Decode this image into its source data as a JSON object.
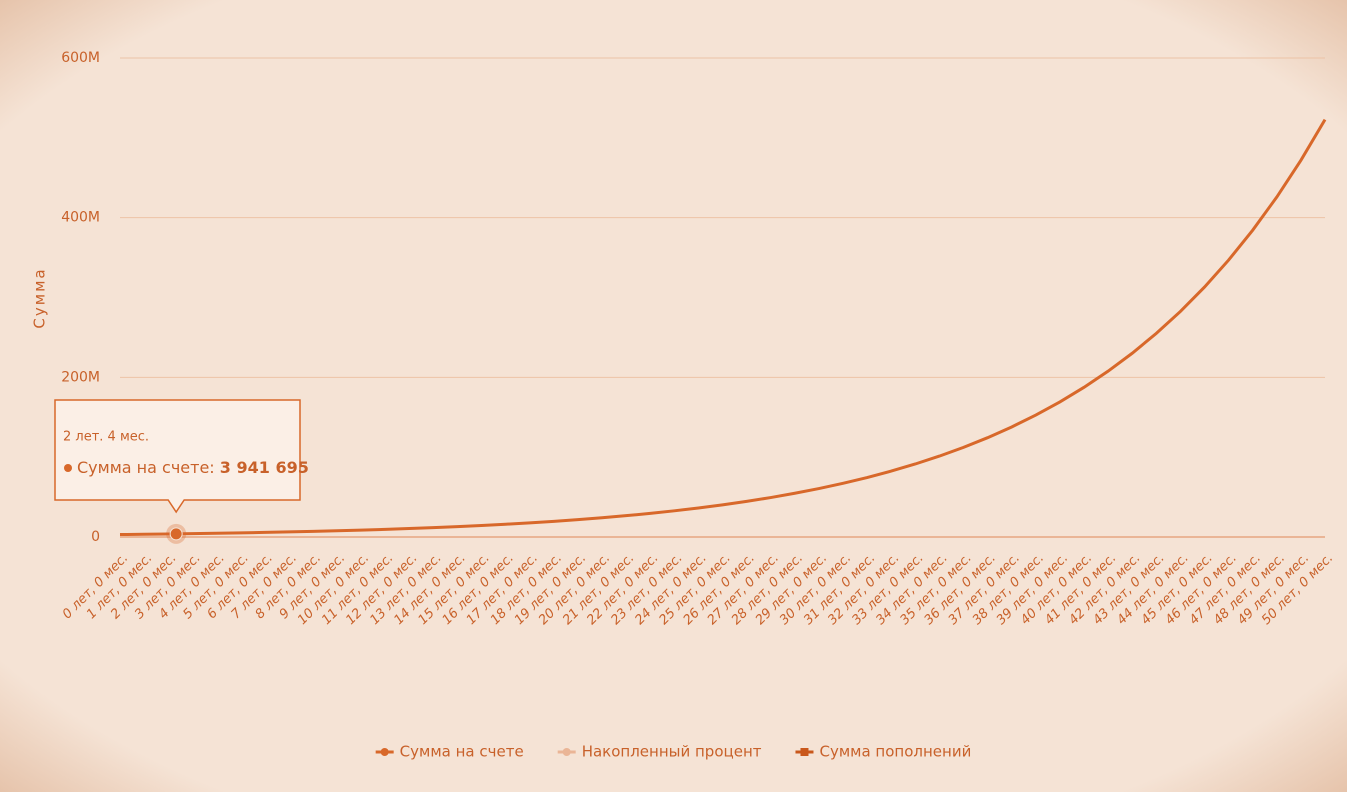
{
  "chart_data": {
    "type": "line",
    "ylabel": "Сумма",
    "categories": [
      "0 лет, 0 мес.",
      "1 лет, 0 мес.",
      "2 лет, 0 мес.",
      "3 лет, 0 мес.",
      "4 лет, 0 мес.",
      "5 лет, 0 мес.",
      "6 лет, 0 мес.",
      "7 лет, 0 мес.",
      "8 лет, 0 мес.",
      "9 лет, 0 мес.",
      "10 лет, 0 мес.",
      "11 лет, 0 мес.",
      "12 лет, 0 мес.",
      "13 лет, 0 мес.",
      "14 лет, 0 мес.",
      "15 лет, 0 мес.",
      "16 лет, 0 мес.",
      "17 лет, 0 мес.",
      "18 лет, 0 мес.",
      "19 лет, 0 мес.",
      "20 лет, 0 мес.",
      "21 лет, 0 мес.",
      "22 лет, 0 мес.",
      "23 лет, 0 мес.",
      "24 лет, 0 мес.",
      "25 лет, 0 мес.",
      "26 лет, 0 мес.",
      "27 лет, 0 мес.",
      "28 лет, 0 мес.",
      "29 лет, 0 мес.",
      "30 лет, 0 мес.",
      "31 лет, 0 мес.",
      "32 лет, 0 мес.",
      "33 лет, 0 мес.",
      "34 лет, 0 мес.",
      "35 лет, 0 мес.",
      "36 лет, 0 мес.",
      "37 лет, 0 мес.",
      "38 лет, 0 мес.",
      "39 лет, 0 мес.",
      "40 лет, 0 мес.",
      "41 лет, 0 мес.",
      "42 лет, 0 мес.",
      "43 лет, 0 мес.",
      "44 лет, 0 мес.",
      "45 лет, 0 мес.",
      "46 лет, 0 мес.",
      "47 лет, 0 мес.",
      "48 лет, 0 мес.",
      "49 лет, 0 мес.",
      "50 лет, 0 мес."
    ],
    "series": [
      {
        "name": "Сумма на счете",
        "color": "#d8682a",
        "values": [
          3100000,
          3435000,
          3806000,
          4217000,
          4672000,
          5177000,
          5736000,
          6355000,
          7041000,
          7802000,
          8644000,
          9578000,
          10613000,
          11759000,
          13029000,
          14436000,
          15995000,
          17722000,
          19636000,
          21757000,
          24107000,
          26710000,
          29595000,
          32791000,
          36333000,
          40257000,
          44604000,
          49421000,
          54759000,
          60673000,
          67226000,
          74486000,
          82531000,
          91444000,
          101320000,
          112262000,
          124387000,
          137821000,
          152705000,
          169197000,
          187471000,
          207718000,
          230151000,
          255008000,
          282549000,
          313063000,
          346875000,
          384338000,
          425847000,
          471839000,
          522796000
        ]
      },
      {
        "name": "Накопленный процент",
        "color": "#eab596",
        "values": [
          0,
          0,
          0,
          0,
          0,
          0,
          0,
          0,
          0,
          0,
          0,
          0,
          0,
          0,
          0,
          0,
          0,
          0,
          0,
          0,
          0,
          0,
          0,
          0,
          0,
          0,
          0,
          0,
          0,
          0,
          0,
          0,
          0,
          0,
          0,
          0,
          0,
          0,
          0,
          0,
          0,
          0,
          0,
          0,
          0,
          0,
          0,
          0,
          0,
          0,
          0
        ]
      },
      {
        "name": "Сумма пополнений",
        "color": "#c9581c",
        "values": [
          0,
          0,
          0,
          0,
          0,
          0,
          0,
          0,
          0,
          0,
          0,
          0,
          0,
          0,
          0,
          0,
          0,
          0,
          0,
          0,
          0,
          0,
          0,
          0,
          0,
          0,
          0,
          0,
          0,
          0,
          0,
          0,
          0,
          0,
          0,
          0,
          0,
          0,
          0,
          0,
          0,
          0,
          0,
          0,
          0,
          0,
          0,
          0,
          0,
          0,
          0
        ]
      }
    ],
    "ylim": [
      0,
      600000000
    ],
    "yticks": [
      0,
      {
        "value": 200000000,
        "label": "200M"
      },
      {
        "value": 400000000,
        "label": "400M"
      },
      {
        "value": 600000000,
        "label": "600M"
      }
    ],
    "grid": true,
    "tooltip": {
      "title": "2 лет. 4 мес.",
      "label": "Сумма на счете:",
      "value": 3941695,
      "value_label": "3 941 695"
    }
  }
}
